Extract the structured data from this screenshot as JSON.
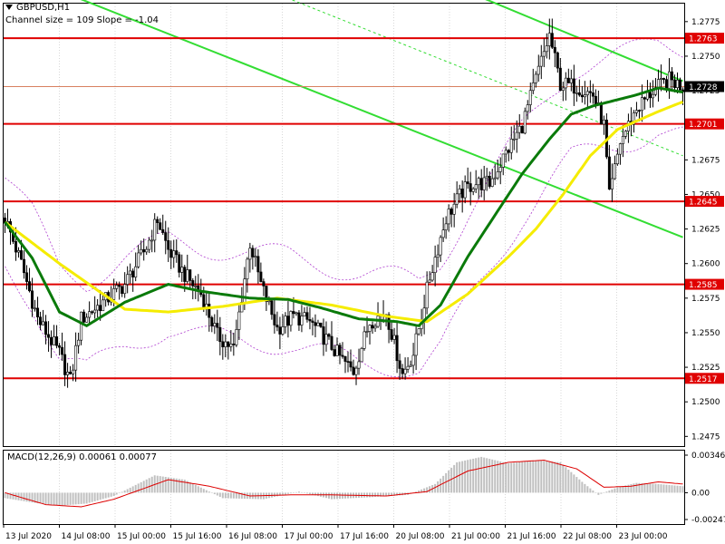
{
  "header": {
    "symbol_label": "GBPUSD,H1",
    "channel_label": "Channel size = 109 Slope = -1.04"
  },
  "macd": {
    "label": "MACD(12,26,9) 0.00061 0.00077",
    "axis_ticks": [
      "0.00346",
      "0.00",
      "-0.00247"
    ],
    "axis_values": [
      0.00346,
      0.0,
      -0.00247
    ]
  },
  "colors": {
    "bull": "#ffffff",
    "bear": "#000000",
    "sma_fast": "#0a7a0a",
    "sma_slow": "#f5ec00",
    "level": "#e00000",
    "channel": "#33dd33",
    "envelope": "#b040d0",
    "macd_hist": "#c0c0c0",
    "macd_signal": "#dd0000",
    "price_line": "#d88060"
  },
  "chart_data": {
    "type": "candlestick",
    "title": "GBPUSD,H1",
    "ylim": [
      1.2468,
      1.2788
    ],
    "y_ticks": [
      "1.2775",
      "1.2750",
      "1.2725",
      "1.2700",
      "1.2675",
      "1.2650",
      "1.2625",
      "1.2600",
      "1.2575",
      "1.2550",
      "1.2525",
      "1.2500",
      "1.2475"
    ],
    "y_tick_values": [
      1.2775,
      1.275,
      1.2725,
      1.27,
      1.2675,
      1.265,
      1.2625,
      1.26,
      1.2575,
      1.255,
      1.2525,
      1.25,
      1.2475
    ],
    "x_ticks": [
      "13 Jul 2020",
      "14 Jul 08:00",
      "15 Jul 00:00",
      "15 Jul 16:00",
      "16 Jul 08:00",
      "17 Jul 00:00",
      "17 Jul 16:00",
      "20 Jul 08:00",
      "21 Jul 00:00",
      "21 Jul 16:00",
      "22 Jul 08:00",
      "23 Jul 00:00"
    ],
    "levels": [
      {
        "label": "1.2763",
        "value": 1.2763
      },
      {
        "label": "1.2701",
        "value": 1.2701
      },
      {
        "label": "1.2645",
        "value": 1.2645
      },
      {
        "label": "1.2585",
        "value": 1.2585
      },
      {
        "label": "1.2517",
        "value": 1.2517
      }
    ],
    "current_price": {
      "label": "1.2728",
      "value": 1.2728
    },
    "price_anchors": [
      [
        0,
        1.2633
      ],
      [
        6,
        1.26
      ],
      [
        12,
        1.256
      ],
      [
        20,
        1.2535
      ],
      [
        24,
        1.2515
      ],
      [
        28,
        1.256
      ],
      [
        36,
        1.2572
      ],
      [
        44,
        1.2585
      ],
      [
        52,
        1.2612
      ],
      [
        56,
        1.2632
      ],
      [
        60,
        1.261
      ],
      [
        66,
        1.2592
      ],
      [
        72,
        1.2578
      ],
      [
        78,
        1.2548
      ],
      [
        84,
        1.2538
      ],
      [
        90,
        1.2615
      ],
      [
        94,
        1.2585
      ],
      [
        100,
        1.2553
      ],
      [
        106,
        1.2562
      ],
      [
        112,
        1.2558
      ],
      [
        118,
        1.2545
      ],
      [
        124,
        1.253
      ],
      [
        128,
        1.2522
      ],
      [
        134,
        1.2558
      ],
      [
        140,
        1.2565
      ],
      [
        146,
        1.252
      ],
      [
        150,
        1.2535
      ],
      [
        156,
        1.259
      ],
      [
        162,
        1.2633
      ],
      [
        168,
        1.2652
      ],
      [
        172,
        1.2658
      ],
      [
        178,
        1.2658
      ],
      [
        184,
        1.268
      ],
      [
        190,
        1.27
      ],
      [
        196,
        1.274
      ],
      [
        200,
        1.2765
      ],
      [
        204,
        1.273
      ],
      [
        210,
        1.2728
      ],
      [
        216,
        1.2722
      ],
      [
        220,
        1.27
      ],
      [
        222,
        1.2648
      ],
      [
        226,
        1.2688
      ],
      [
        232,
        1.2712
      ],
      [
        238,
        1.2725
      ],
      [
        244,
        1.2733
      ],
      [
        249,
        1.2728
      ]
    ],
    "sma_fast_anchors": [
      [
        0,
        1.263
      ],
      [
        10,
        1.2604
      ],
      [
        20,
        1.2565
      ],
      [
        30,
        1.2555
      ],
      [
        44,
        1.2572
      ],
      [
        60,
        1.2585
      ],
      [
        72,
        1.258
      ],
      [
        90,
        1.2575
      ],
      [
        104,
        1.2574
      ],
      [
        116,
        1.2568
      ],
      [
        130,
        1.256
      ],
      [
        144,
        1.2558
      ],
      [
        152,
        1.2555
      ],
      [
        160,
        1.257
      ],
      [
        170,
        1.2605
      ],
      [
        180,
        1.2635
      ],
      [
        190,
        1.2665
      ],
      [
        200,
        1.269
      ],
      [
        208,
        1.2708
      ],
      [
        216,
        1.2714
      ],
      [
        224,
        1.2718
      ],
      [
        232,
        1.2722
      ],
      [
        240,
        1.2727
      ],
      [
        249,
        1.2724
      ]
    ],
    "sma_slow_anchors": [
      [
        0,
        1.263
      ],
      [
        20,
        1.26
      ],
      [
        44,
        1.2567
      ],
      [
        60,
        1.2565
      ],
      [
        80,
        1.2569
      ],
      [
        100,
        1.2575
      ],
      [
        120,
        1.257
      ],
      [
        140,
        1.2562
      ],
      [
        155,
        1.2558
      ],
      [
        170,
        1.2578
      ],
      [
        185,
        1.2605
      ],
      [
        195,
        1.2625
      ],
      [
        205,
        1.265
      ],
      [
        215,
        1.2678
      ],
      [
        225,
        1.2697
      ],
      [
        240,
        1.271
      ],
      [
        249,
        1.2717
      ]
    ],
    "channel_lines": [
      {
        "from": [
          23,
          1.2795
        ],
        "to": [
          249,
          1.2619
        ]
      },
      {
        "from": [
          167,
          1.2799
        ],
        "to": [
          249,
          1.2732
        ]
      },
      {
        "from": [
          100,
          1.2795
        ],
        "to": [
          249,
          1.2678
        ]
      }
    ],
    "envelope_offset": 0.0032,
    "macd_hist_anchors": [
      [
        0,
        -0.0005
      ],
      [
        10,
        -0.0009
      ],
      [
        20,
        -0.0012
      ],
      [
        30,
        -0.001
      ],
      [
        40,
        -0.0003
      ],
      [
        55,
        0.0016
      ],
      [
        66,
        0.0012
      ],
      [
        80,
        -0.0005
      ],
      [
        95,
        -0.0006
      ],
      [
        108,
        0.0001
      ],
      [
        120,
        -0.0006
      ],
      [
        135,
        -0.0004
      ],
      [
        148,
        -0.0002
      ],
      [
        158,
        0.0008
      ],
      [
        166,
        0.0028
      ],
      [
        175,
        0.0033
      ],
      [
        185,
        0.0027
      ],
      [
        195,
        0.003
      ],
      [
        204,
        0.0028
      ],
      [
        212,
        0.001
      ],
      [
        218,
        -0.0002
      ],
      [
        225,
        0.0005
      ],
      [
        232,
        0.0009
      ],
      [
        240,
        0.0008
      ],
      [
        249,
        0.0006
      ]
    ],
    "macd_signal_anchors": [
      [
        0,
        0.0
      ],
      [
        15,
        -0.0011
      ],
      [
        28,
        -0.0013
      ],
      [
        40,
        -0.0006
      ],
      [
        60,
        0.0012
      ],
      [
        75,
        0.0006
      ],
      [
        90,
        -0.0003
      ],
      [
        105,
        -0.0002
      ],
      [
        120,
        -0.0002
      ],
      [
        140,
        -0.0003
      ],
      [
        155,
        0.0001
      ],
      [
        170,
        0.002
      ],
      [
        185,
        0.0028
      ],
      [
        198,
        0.003
      ],
      [
        210,
        0.0022
      ],
      [
        220,
        0.0005
      ],
      [
        230,
        0.0006
      ],
      [
        240,
        0.001
      ],
      [
        249,
        0.0008
      ]
    ]
  }
}
